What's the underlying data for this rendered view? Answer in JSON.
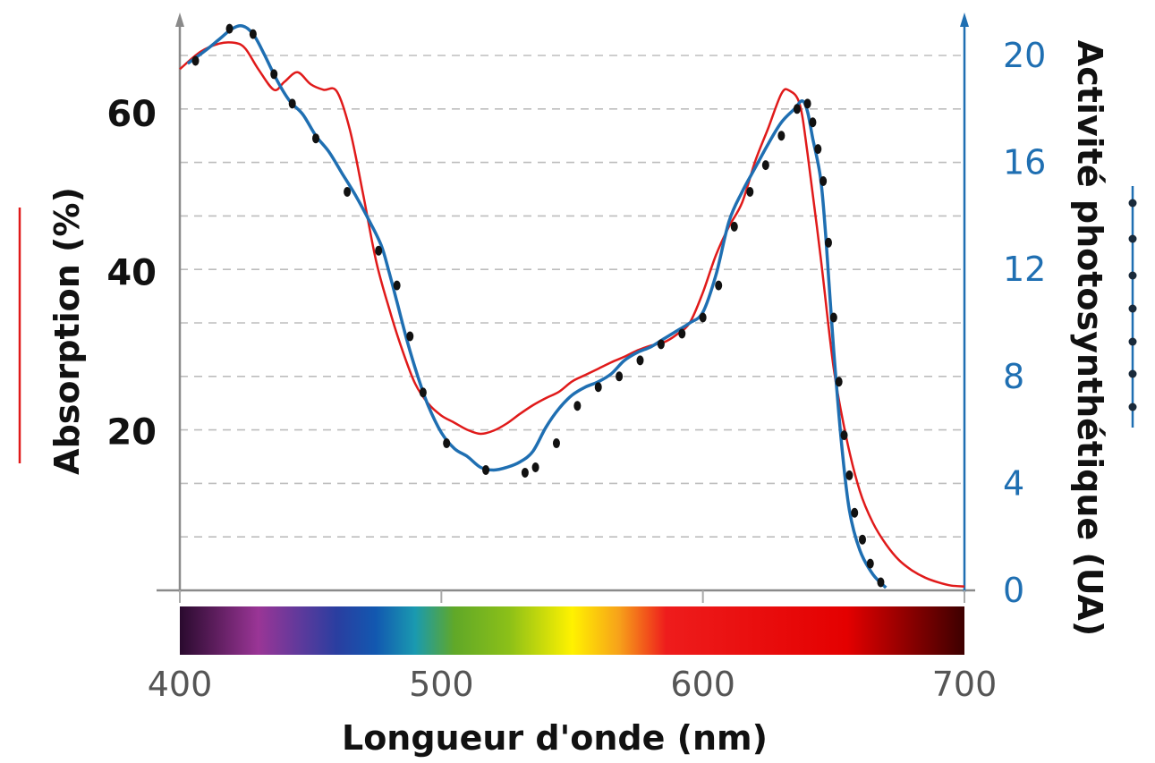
{
  "chart_data": {
    "type": "line",
    "title": "",
    "xlabel": "Longueur d'onde (nm)",
    "ylabel_left": "Absorption (%)",
    "ylabel_right": "Activité photosynthétique (UA)",
    "xlim": [
      400,
      700
    ],
    "ylim_left": [
      0,
      70
    ],
    "ylim_right": [
      0,
      21
    ],
    "x_ticks": [
      "400",
      "500",
      "600",
      "700"
    ],
    "y_left_ticks": [
      "20",
      "40",
      "60"
    ],
    "y_right_ticks": [
      "0",
      "4",
      "8",
      "12",
      "16",
      "20"
    ],
    "grid": "horizontal dashed",
    "spectrum_bar": true,
    "series": [
      {
        "legend_glyph": "red-line",
        "axis": "left",
        "color": "#e01a1a",
        "style": "line",
        "x": [
          400,
          408,
          415,
          421,
          425,
          430,
          436,
          440,
          445,
          450,
          455,
          460,
          465,
          470,
          475,
          480,
          485,
          490,
          495,
          500,
          505,
          510,
          515,
          520,
          525,
          530,
          535,
          540,
          545,
          550,
          555,
          560,
          565,
          570,
          575,
          580,
          585,
          590,
          595,
          600,
          605,
          610,
          615,
          620,
          625,
          630,
          633,
          637,
          640,
          645,
          650,
          655,
          660,
          665,
          670,
          675,
          680,
          685,
          690,
          695,
          700
        ],
        "y": [
          65.6,
          67.8,
          68.8,
          68.9,
          68.2,
          65.6,
          63.0,
          64.0,
          65.2,
          63.7,
          63.0,
          62.8,
          58.0,
          50.0,
          41.5,
          35.5,
          30.3,
          26.0,
          23.5,
          22.0,
          21.1,
          20.2,
          19.7,
          20.1,
          21.0,
          22.2,
          23.3,
          24.2,
          25.0,
          26.3,
          27.1,
          27.9,
          28.7,
          29.4,
          30.2,
          30.8,
          31.2,
          32.2,
          33.7,
          37.5,
          42.2,
          45.8,
          48.8,
          54.0,
          58.2,
          62.5,
          62.9,
          61.2,
          55.0,
          42.0,
          28.0,
          19.0,
          12.5,
          8.5,
          5.8,
          3.8,
          2.5,
          1.6,
          1.0,
          0.6,
          0.5
        ]
      },
      {
        "legend_glyph": "blue-dotted-line",
        "axis": "right",
        "color": "#1f6fb2",
        "style": "line-with-dots",
        "x": [
          403,
          410,
          415,
          420,
          424,
          428,
          432,
          437,
          442,
          447,
          452,
          457,
          462,
          467,
          472,
          477,
          480,
          483,
          487,
          491,
          495,
          500,
          505,
          510,
          515,
          520,
          525,
          530,
          535,
          540,
          545,
          550,
          555,
          560,
          565,
          570,
          575,
          580,
          585,
          590,
          595,
          600,
          605,
          610,
          615,
          620,
          625,
          630,
          635,
          638,
          640,
          642,
          645,
          647,
          650,
          653,
          656,
          660,
          665,
          670
        ],
        "y": [
          19.7,
          20.2,
          20.6,
          21.0,
          21.1,
          20.8,
          20.1,
          19.1,
          18.3,
          17.8,
          17.0,
          16.4,
          15.6,
          14.8,
          13.9,
          12.9,
          11.9,
          10.8,
          9.3,
          8.0,
          6.9,
          5.9,
          5.3,
          5.0,
          4.6,
          4.5,
          4.6,
          4.8,
          5.2,
          6.1,
          6.8,
          7.3,
          7.6,
          7.8,
          8.1,
          8.6,
          8.9,
          9.1,
          9.4,
          9.7,
          10.0,
          10.4,
          11.8,
          13.8,
          14.9,
          15.8,
          16.7,
          17.5,
          18.0,
          18.3,
          17.9,
          16.9,
          15.4,
          13.2,
          9.0,
          5.5,
          3.0,
          1.5,
          0.6,
          0.1
        ],
        "dots_x": [
          406,
          419,
          428,
          436,
          443,
          452,
          464,
          476,
          483,
          488,
          493,
          502,
          517,
          532,
          536,
          544,
          552,
          560,
          568,
          576,
          584,
          592,
          600,
          606,
          612,
          618,
          624,
          630,
          636,
          640,
          642,
          644,
          646,
          648,
          650,
          652,
          654,
          656,
          658,
          661,
          664,
          668
        ],
        "dots_y": [
          19.8,
          21.0,
          20.8,
          19.3,
          18.2,
          16.9,
          14.9,
          12.7,
          11.4,
          9.5,
          7.4,
          5.5,
          4.5,
          4.4,
          4.6,
          5.5,
          6.9,
          7.6,
          8.0,
          8.6,
          9.2,
          9.6,
          10.2,
          11.4,
          13.6,
          14.9,
          15.9,
          17.0,
          18.0,
          18.2,
          17.5,
          16.5,
          15.3,
          13.0,
          10.2,
          7.8,
          5.8,
          4.3,
          2.9,
          1.9,
          1.0,
          0.3
        ]
      }
    ]
  },
  "colors": {
    "absorption": "#e01a1a",
    "activity": "#1f6fb2",
    "axis": "#888888",
    "grid": "#bdbdbd",
    "dots": "#111111"
  }
}
